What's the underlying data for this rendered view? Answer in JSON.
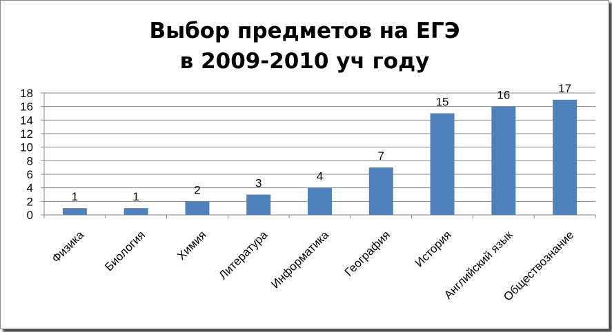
{
  "chart_data": {
    "type": "bar",
    "title": [
      "Выбор предметов на ЕГЭ",
      "в 2009-2010 уч году"
    ],
    "categories": [
      "Физика",
      "Биология",
      "Химия",
      "Литература",
      "Информатика",
      "География",
      "История",
      "Английский язык",
      "Обществознание"
    ],
    "values": [
      1,
      1,
      2,
      3,
      4,
      7,
      15,
      16,
      17
    ],
    "data_labels": [
      "1",
      "1",
      "2",
      "3",
      "4",
      "7",
      "15",
      "16",
      "17"
    ],
    "ylim": [
      0,
      18
    ],
    "yticks": [
      "0",
      "2",
      "4",
      "6",
      "8",
      "10",
      "12",
      "14",
      "16",
      "18"
    ],
    "grid": true,
    "legend": "none",
    "colors": {
      "bar": "#4F81BD",
      "grid": "#868686",
      "axis": "#868686"
    }
  }
}
